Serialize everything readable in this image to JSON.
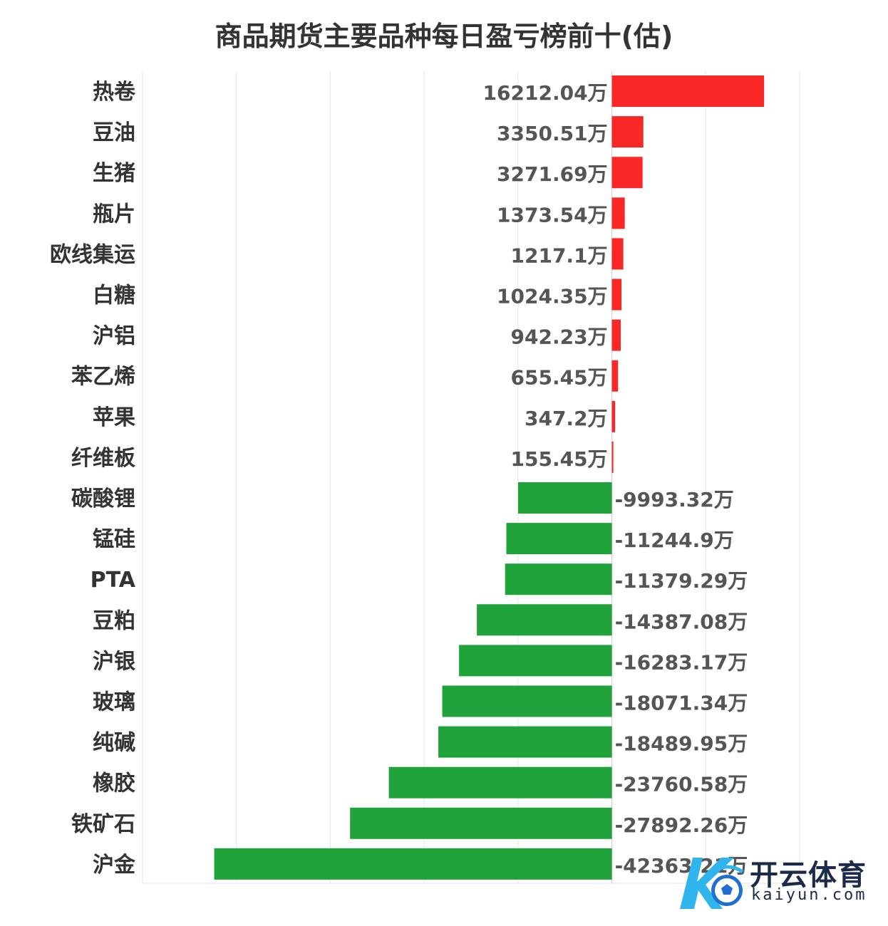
{
  "chart_data": {
    "type": "bar",
    "orientation": "horizontal",
    "title": "商品期货主要品种每日盈亏榜前十(估)",
    "unit": "万",
    "categories": [
      "热卷",
      "豆油",
      "生猪",
      "瓶片",
      "欧线集运",
      "白糖",
      "沪铝",
      "苯乙烯",
      "苹果",
      "纤维板",
      "碳酸锂",
      "锰硅",
      "PTA",
      "豆粕",
      "沪银",
      "玻璃",
      "纯碱",
      "橡胶",
      "铁矿石",
      "沪金"
    ],
    "values": [
      16212.04,
      3350.51,
      3271.69,
      1373.54,
      1217.1,
      1024.35,
      942.23,
      655.45,
      347.2,
      155.45,
      -9993.32,
      -11244.9,
      -11379.29,
      -14387.08,
      -16283.17,
      -18071.34,
      -18489.95,
      -23760.58,
      -27892.26,
      -42363.21
    ],
    "value_labels": [
      "16212.04万",
      "3350.51万",
      "3271.69万",
      "1373.54万",
      "1217.1万",
      "1024.35万",
      "942.23万",
      "655.45万",
      "347.2万",
      "155.45万",
      "-9993.32万",
      "-11244.9万",
      "-11379.29万",
      "-14387.08万",
      "-16283.17万",
      "-18071.34万",
      "-18489.95万",
      "-23760.58万",
      "-27892.26万",
      "-42363.21万"
    ],
    "xlim": [
      -50000,
      20000
    ],
    "grid": true,
    "legend": "none",
    "colors": {
      "positive": "#fa2727",
      "negative": "#21a33c",
      "grid": "#e6e6e6"
    }
  },
  "watermark": {
    "brand": "开云体育",
    "url": "kaiyun.com"
  }
}
